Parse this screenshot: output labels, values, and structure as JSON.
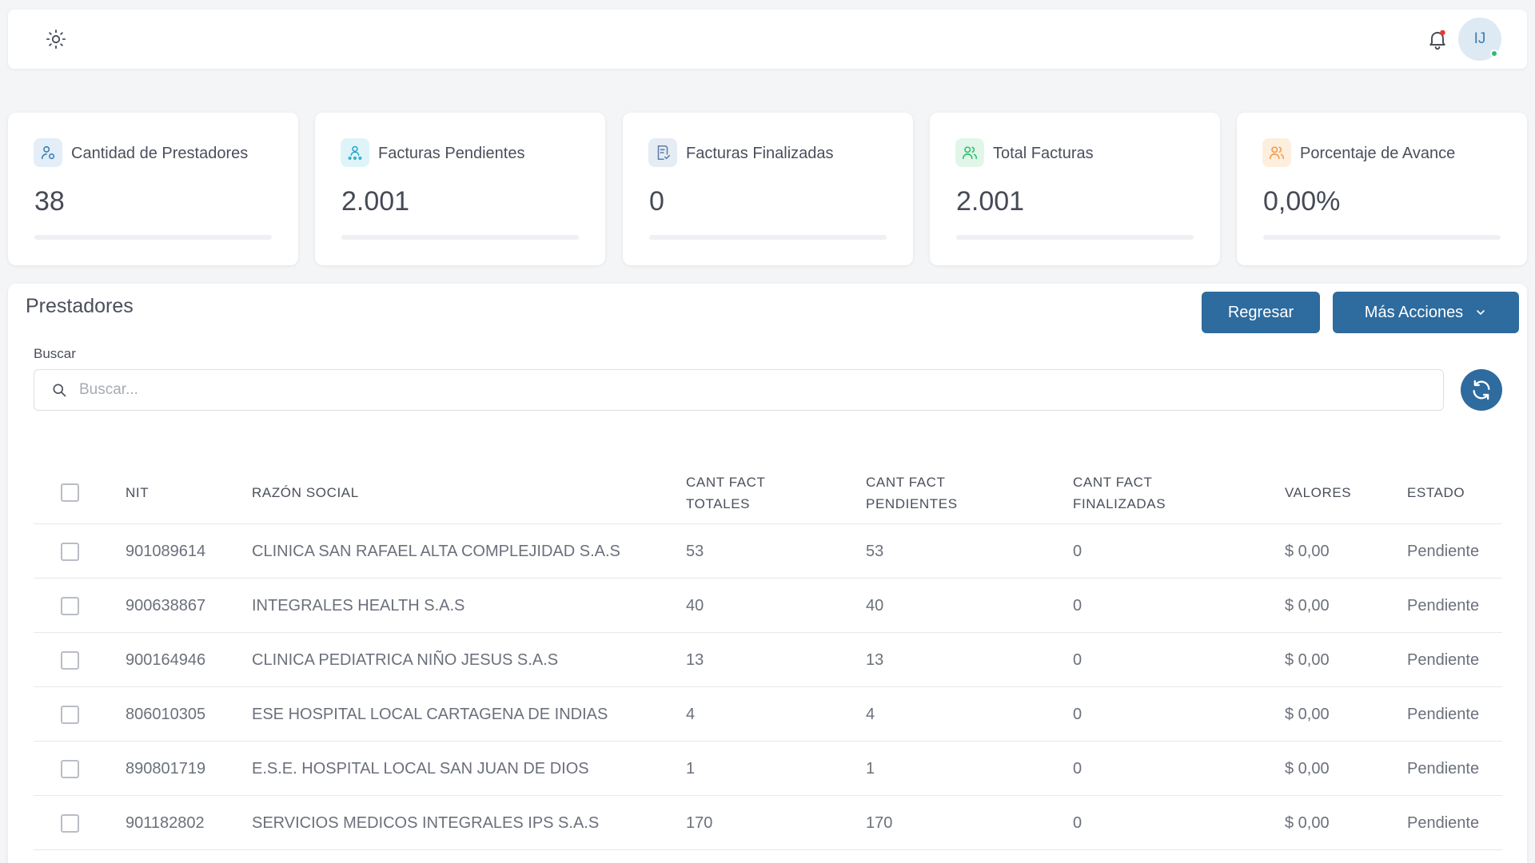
{
  "header": {
    "theme_icon": "sun-icon",
    "notification_icon": "bell-icon",
    "notification_color": "#e53935",
    "avatar_initials": "IJ",
    "online_color": "#2dbd6e"
  },
  "stats": [
    {
      "label": "Cantidad de Prestadores",
      "value": "38",
      "icon": "user-icon",
      "icon_bg": "#e3eef8",
      "icon_color": "#3c7fb3",
      "progress": 0
    },
    {
      "label": "Facturas Pendientes",
      "value": "2.001",
      "icon": "users-tree-icon",
      "icon_bg": "#dff4f9",
      "icon_color": "#27a9c9",
      "progress": 0
    },
    {
      "label": "Facturas Finalizadas",
      "value": "0",
      "icon": "invoice-check-icon",
      "icon_bg": "#e6ecf4",
      "icon_color": "#5b7fa8",
      "progress": 0
    },
    {
      "label": "Total Facturas",
      "value": "2.001",
      "icon": "users-icon",
      "icon_bg": "#e1f6e9",
      "icon_color": "#2dbd6e",
      "progress": 0
    },
    {
      "label": "Porcentaje de Avance",
      "value": "0,00%",
      "icon": "users-icon",
      "icon_bg": "#fdeede",
      "icon_color": "#f39a4a",
      "progress": 0
    }
  ],
  "panel": {
    "title": "Prestadores",
    "back_label": "Regresar",
    "more_label": "Más Acciones",
    "accent_color": "#2e6b9e",
    "search": {
      "label": "Buscar",
      "placeholder": "Buscar...",
      "value": ""
    }
  },
  "table": {
    "columns": {
      "nit": "NIT",
      "razon_social": "RAZÓN SOCIAL",
      "totales_1": "CANT FACT",
      "totales_2": "TOTALES",
      "pendientes_1": "CANT FACT",
      "pendientes_2": "PENDIENTES",
      "finalizadas_1": "CANT FACT",
      "finalizadas_2": "FINALIZADAS",
      "valores": "VALORES",
      "estado": "ESTADO"
    },
    "rows": [
      {
        "nit": "901089614",
        "razon_social": "CLINICA SAN RAFAEL ALTA COMPLEJIDAD S.A.S",
        "totales": "53",
        "pendientes": "53",
        "finalizadas": "0",
        "valores": "$ 0,00",
        "estado": "Pendiente"
      },
      {
        "nit": "900638867",
        "razon_social": "INTEGRALES HEALTH S.A.S",
        "totales": "40",
        "pendientes": "40",
        "finalizadas": "0",
        "valores": "$ 0,00",
        "estado": "Pendiente"
      },
      {
        "nit": "900164946",
        "razon_social": "CLINICA PEDIATRICA NIÑO JESUS S.A.S",
        "totales": "13",
        "pendientes": "13",
        "finalizadas": "0",
        "valores": "$ 0,00",
        "estado": "Pendiente"
      },
      {
        "nit": "806010305",
        "razon_social": "ESE HOSPITAL LOCAL CARTAGENA DE INDIAS",
        "totales": "4",
        "pendientes": "4",
        "finalizadas": "0",
        "valores": "$ 0,00",
        "estado": "Pendiente"
      },
      {
        "nit": "890801719",
        "razon_social": "E.S.E. HOSPITAL LOCAL SAN JUAN DE DIOS",
        "totales": "1",
        "pendientes": "1",
        "finalizadas": "0",
        "valores": "$ 0,00",
        "estado": "Pendiente"
      },
      {
        "nit": "901182802",
        "razon_social": "SERVICIOS MEDICOS INTEGRALES IPS S.A.S",
        "totales": "170",
        "pendientes": "170",
        "finalizadas": "0",
        "valores": "$ 0,00",
        "estado": "Pendiente"
      }
    ]
  }
}
